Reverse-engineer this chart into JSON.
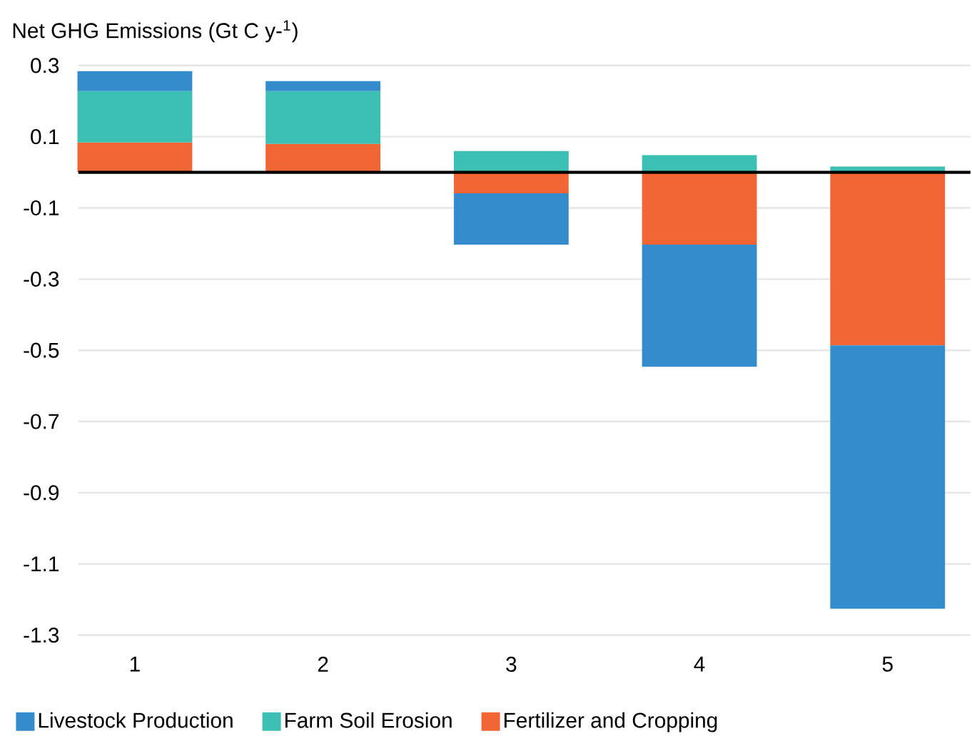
{
  "chart_data": {
    "type": "bar",
    "title": "Net GHG Emissions (Gt C y-$^{1}$)",
    "categories": [
      "1",
      "2",
      "3",
      "4",
      "5"
    ],
    "stacked": true,
    "series": [
      {
        "name": "Fertilizer and Cropping",
        "color": "#f26535",
        "values": [
          0.084,
          0.08,
          -0.059,
          -0.203,
          -0.486
        ]
      },
      {
        "name": "Farm Soil Erosion",
        "color": "#3dbfb3",
        "values": [
          0.144,
          0.148,
          0.06,
          0.048,
          0.016
        ]
      },
      {
        "name": "Livestock Production",
        "color": "#348ccc",
        "values": [
          0.056,
          0.028,
          -0.144,
          -0.343,
          -0.74
        ]
      }
    ],
    "ylim": [
      -1.3,
      0.3
    ],
    "yticks": [
      0.3,
      0.1,
      -0.1,
      -0.3,
      -0.5,
      -0.7,
      -0.9,
      -1.1,
      -1.3
    ],
    "grid": "y",
    "legend": "bottom"
  }
}
